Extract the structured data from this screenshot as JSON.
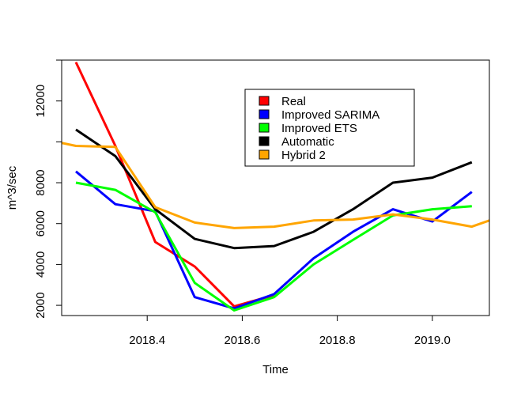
{
  "chart_data": {
    "type": "line",
    "title": "",
    "xlabel": "Time",
    "ylabel": "m^3/sec",
    "xlim": [
      2018.22,
      2019.12
    ],
    "ylim": [
      1500,
      14000
    ],
    "xticks": [
      2018.4,
      2018.6,
      2018.8,
      2019.0
    ],
    "xtick_labels": [
      "2018.4",
      "2018.6",
      "2018.8",
      "2019.0"
    ],
    "yticks": [
      2000,
      4000,
      6000,
      8000,
      12000
    ],
    "ytick_labels": [
      "2000",
      "4000",
      "6000",
      "8000",
      "12000"
    ],
    "grid": false,
    "legend_position": "top-center",
    "series": [
      {
        "name": "Real",
        "color": "#ff0000",
        "x": [
          2018.25,
          2018.333,
          2018.417,
          2018.5,
          2018.583,
          2018.667
        ],
        "y": [
          13900,
          9800,
          5100,
          3900,
          1950,
          2500
        ]
      },
      {
        "name": "Improved SARIMA",
        "color": "#0000ff",
        "x": [
          2018.25,
          2018.333,
          2018.417,
          2018.5,
          2018.583,
          2018.667,
          2018.75,
          2018.833,
          2018.917,
          2019.0,
          2019.083
        ],
        "y": [
          8550,
          6950,
          6600,
          2400,
          1850,
          2550,
          4300,
          5600,
          6700,
          6100,
          7550
        ]
      },
      {
        "name": "Improved ETS",
        "color": "#00ff00",
        "x": [
          2018.25,
          2018.333,
          2018.417,
          2018.5,
          2018.583,
          2018.667,
          2018.75,
          2018.833,
          2018.917,
          2019.0,
          2019.083
        ],
        "y": [
          8000,
          7650,
          6550,
          3100,
          1750,
          2400,
          4000,
          5200,
          6400,
          6700,
          6850
        ]
      },
      {
        "name": "Automatic",
        "color": "#000000",
        "x": [
          2018.25,
          2018.333,
          2018.417,
          2018.5,
          2018.583,
          2018.667,
          2018.75,
          2018.833,
          2018.917,
          2019.0,
          2019.083
        ],
        "y": [
          10600,
          9300,
          6700,
          5250,
          4800,
          4900,
          5600,
          6700,
          8000,
          8250,
          9000
        ]
      },
      {
        "name": "Hybrid 2",
        "color": "#ffa500",
        "x": [
          2018.22,
          2018.25,
          2018.333,
          2018.417,
          2018.5,
          2018.583,
          2018.667,
          2018.75,
          2018.833,
          2018.917,
          2019.0,
          2019.083,
          2019.12
        ],
        "y": [
          9950,
          9800,
          9750,
          6800,
          6050,
          5780,
          5850,
          6150,
          6200,
          6450,
          6200,
          5850,
          6150
        ]
      }
    ]
  }
}
